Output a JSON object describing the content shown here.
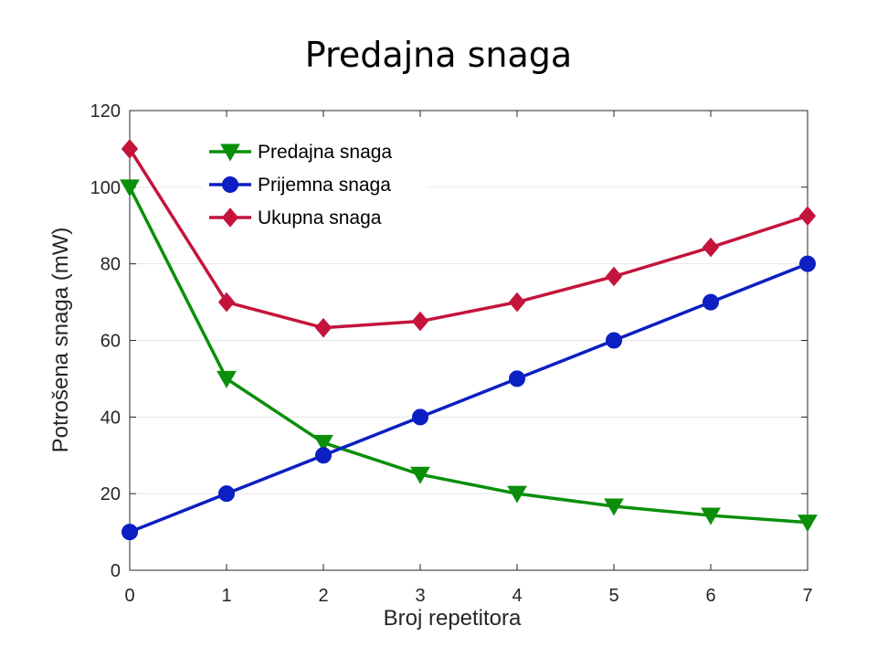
{
  "slide": {
    "title": "Predajna snaga"
  },
  "chart_data": {
    "type": "line",
    "title": "",
    "xlabel": "Broj repetitora",
    "ylabel": "Potrošena snaga (mW)",
    "x": [
      0,
      1,
      2,
      3,
      4,
      5,
      6,
      7
    ],
    "xlim": [
      0,
      7
    ],
    "ylim": [
      0,
      120
    ],
    "xticks": [
      0,
      1,
      2,
      3,
      4,
      5,
      6,
      7
    ],
    "yticks": [
      0,
      20,
      40,
      60,
      80,
      100,
      120
    ],
    "grid": "horizontal",
    "legend_position": "top-left",
    "series": [
      {
        "name": "Predajna snaga",
        "color": "#0b8f0b",
        "marker": "triangle-down",
        "values": [
          100,
          50,
          33.3,
          25,
          20,
          16.7,
          14.3,
          12.5
        ]
      },
      {
        "name": "Prijemna snaga",
        "color": "#0b1fc2",
        "marker": "circle",
        "values": [
          10,
          20,
          30,
          40,
          50,
          60,
          70,
          80
        ]
      },
      {
        "name": "Ukupna snaga",
        "color": "#c4143c",
        "marker": "diamond",
        "values": [
          110,
          70,
          63.3,
          65,
          70,
          76.7,
          84.3,
          92.5
        ]
      }
    ]
  }
}
